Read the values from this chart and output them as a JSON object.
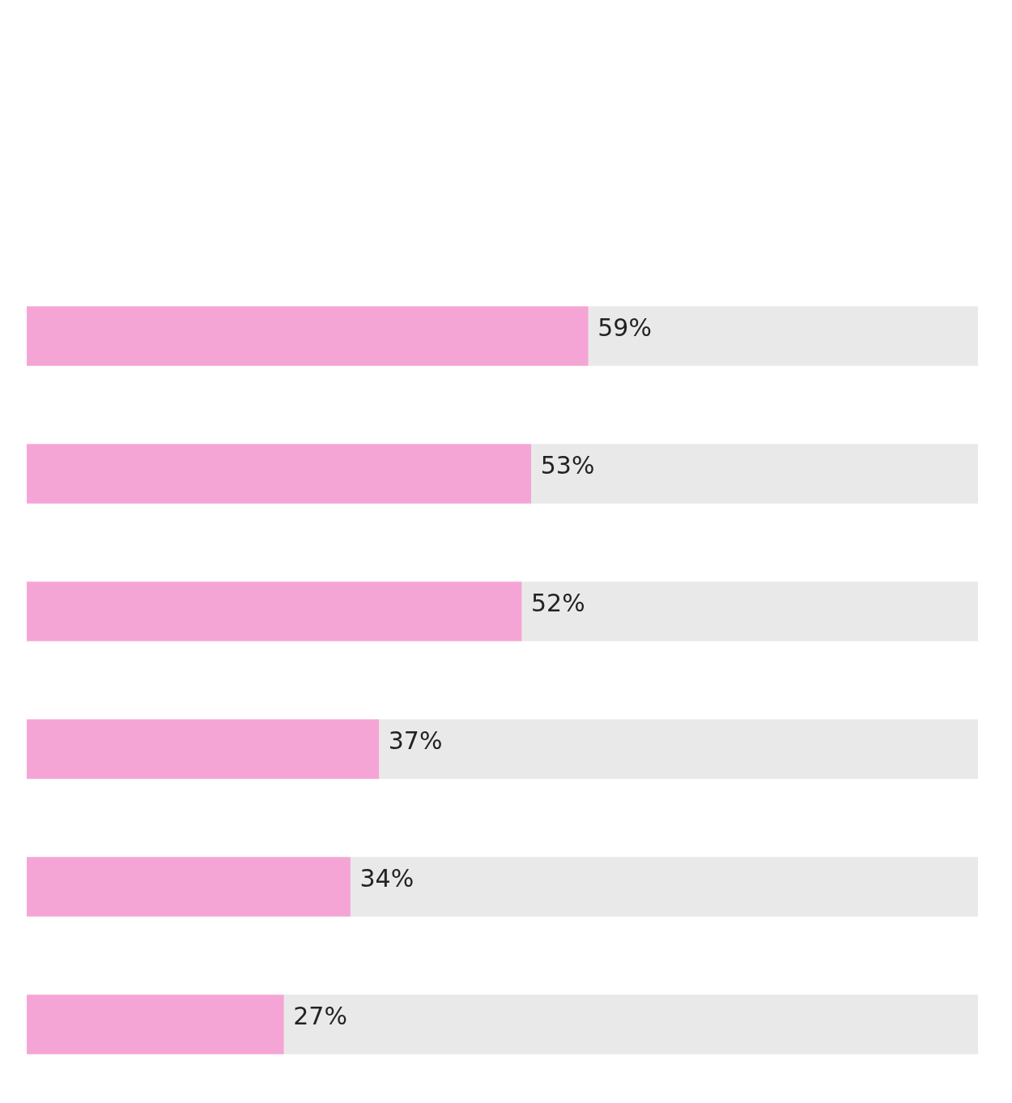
{
  "chart_data": {
    "type": "bar",
    "orientation": "horizontal",
    "stacked": true,
    "categories": [
      null,
      null,
      null,
      null,
      null,
      null
    ],
    "series": [
      {
        "color": "#f5a5d5",
        "values": [
          59,
          53,
          52,
          37,
          34,
          27
        ],
        "value_labels": [
          "59%",
          "53%",
          "52%",
          "37%",
          "34%",
          "27%"
        ]
      },
      {
        "color": "#e9e9e9",
        "values": [
          41,
          47,
          48,
          63,
          66,
          73
        ]
      }
    ],
    "xlim": [
      0,
      100
    ],
    "tick_labels": false,
    "grid": false,
    "legend": false
  }
}
